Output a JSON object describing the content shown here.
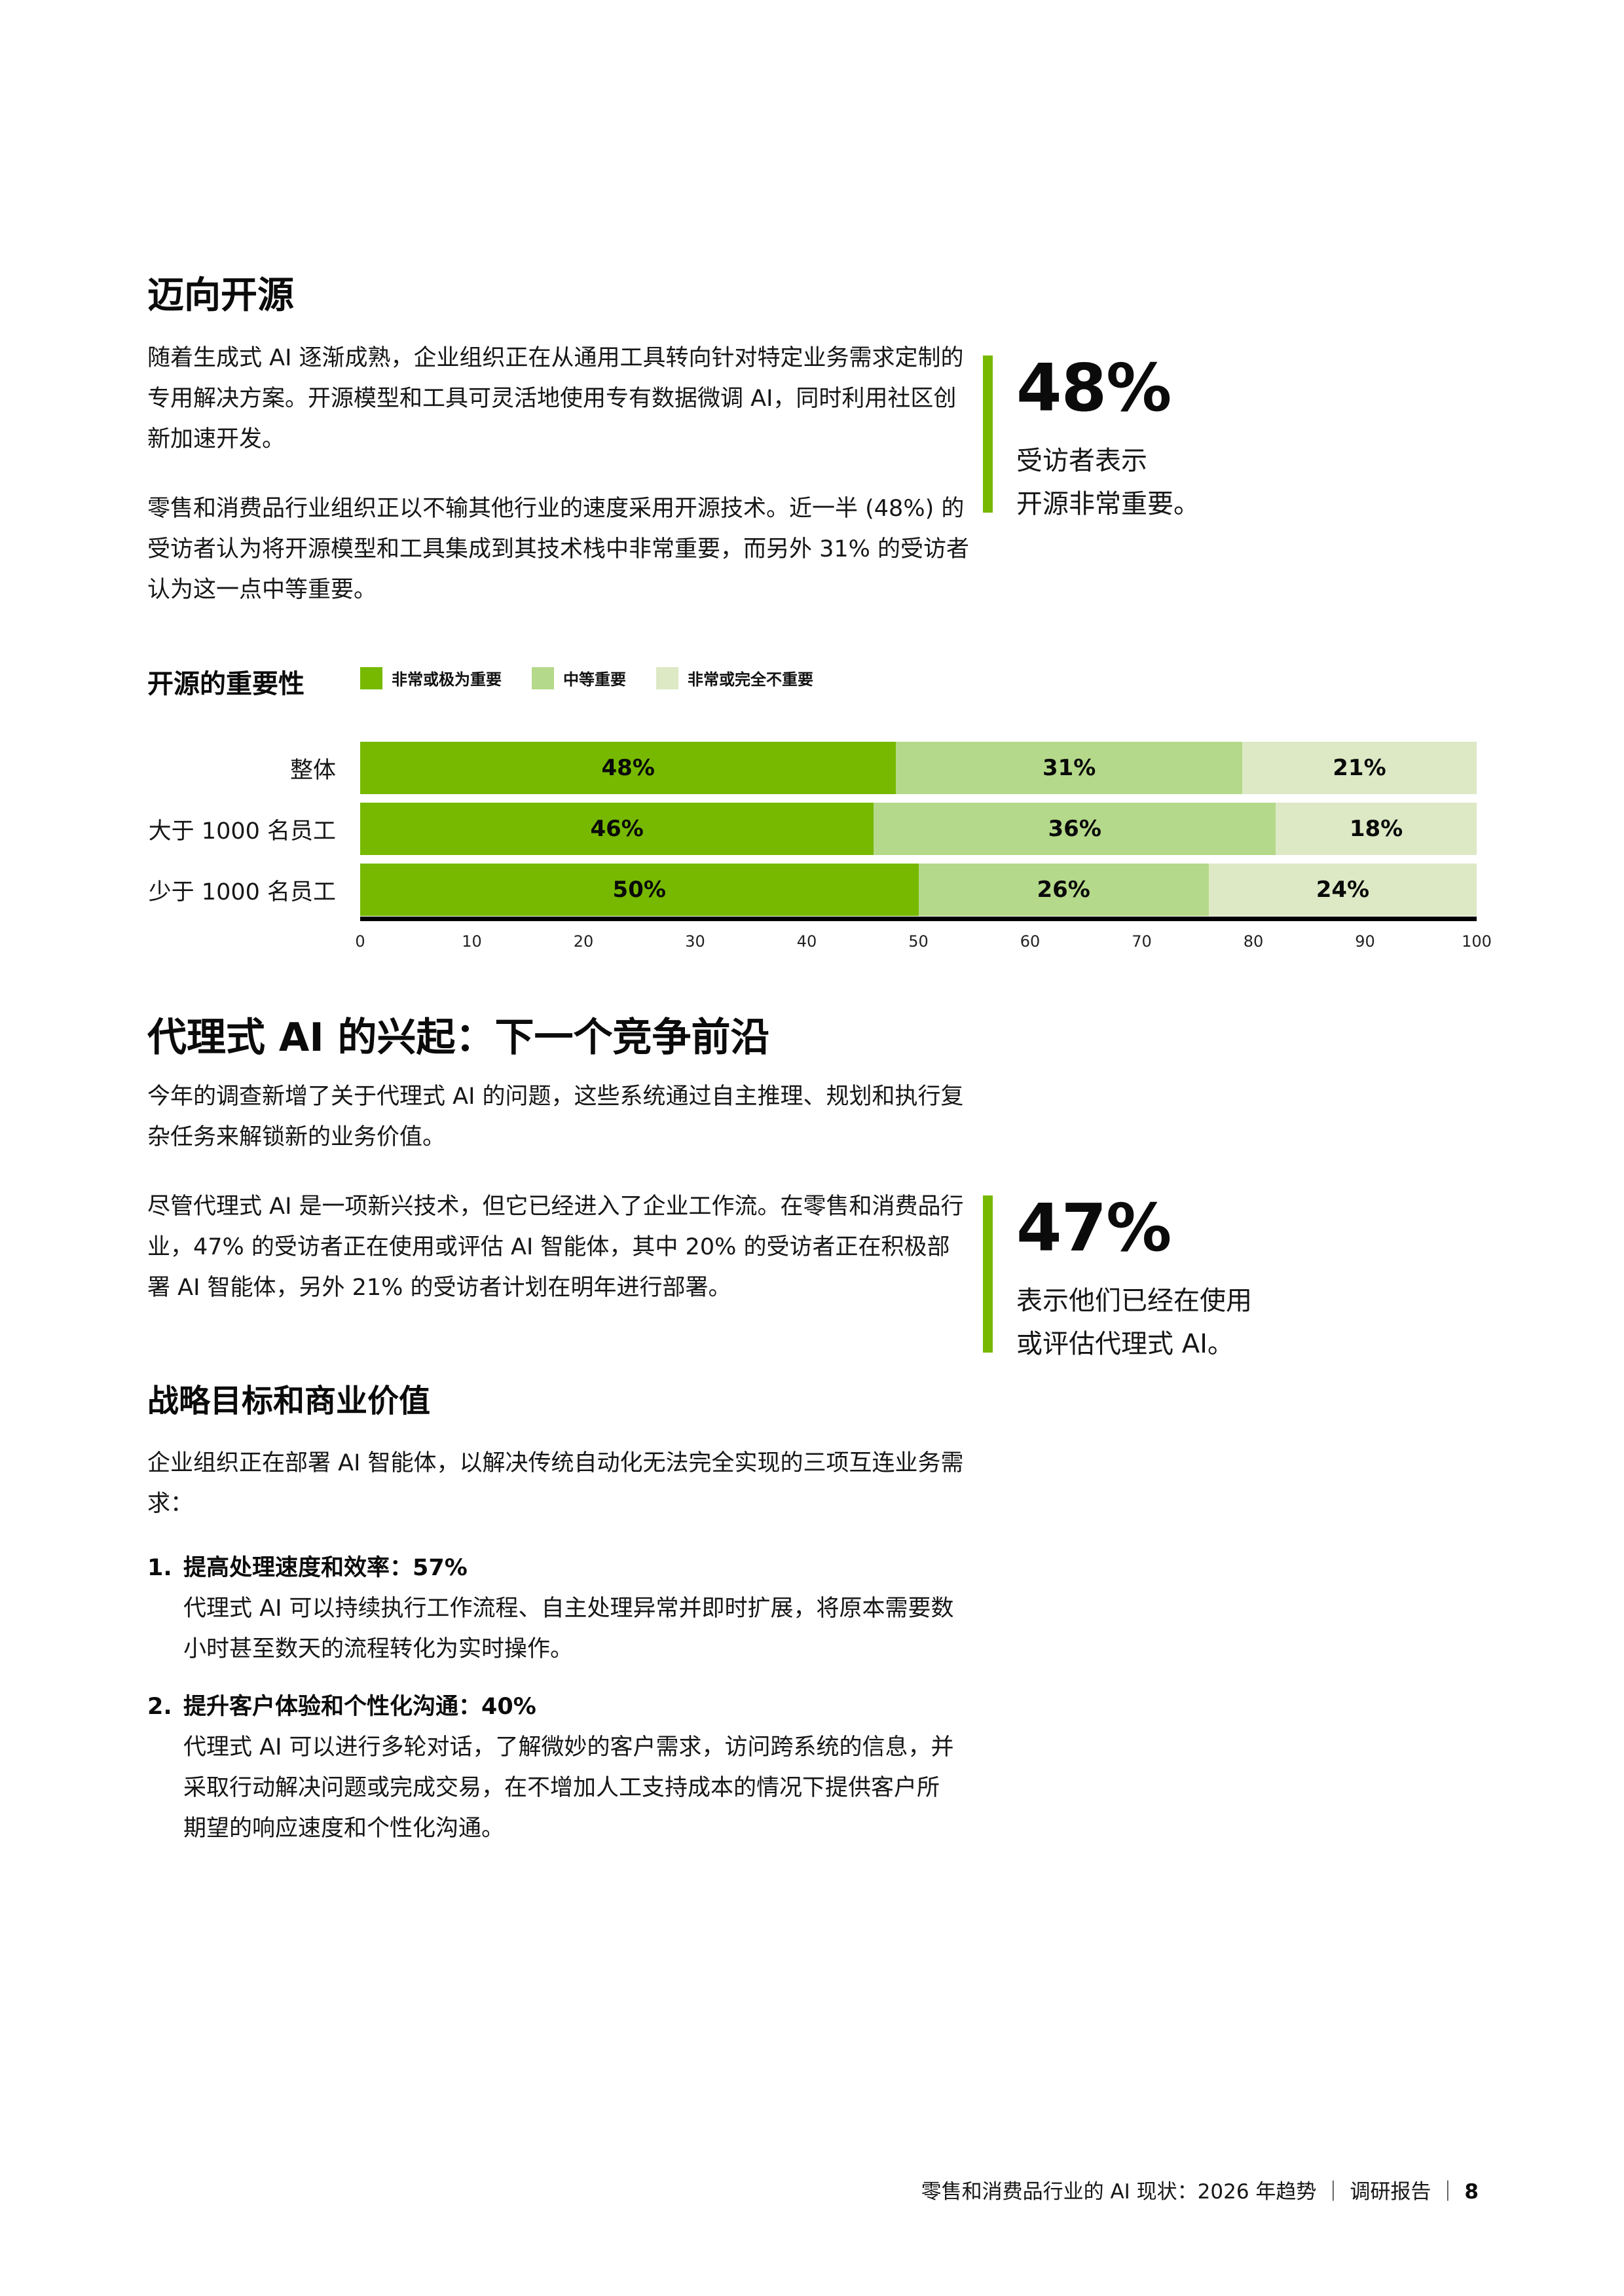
{
  "page": {
    "background": "#ffffff",
    "accent_green": "#76b900",
    "text_color": "#161616"
  },
  "section_open_source": {
    "title": "迈向开源",
    "p1": "随着生成式 AI 逐渐成熟，企业组织正在从通用工具转向针对特定业务需求定制的专用解决方案。开源模型和工具可灵活地使用专有数据微调 AI，同时利用社区创新加速开发。",
    "p2": "零售和消费品行业组织正以不输其他行业的速度采用开源技术。近一半 (48%) 的受访者认为将开源模型和工具集成到其技术栈中非常重要，而另外 31% 的受访者认为这一点中等重要。",
    "callout": {
      "value": "48%",
      "caption_line1": "受访者表示",
      "caption_line2": "开源非常重要。"
    }
  },
  "chart_data": {
    "type": "bar",
    "orientation": "horizontal",
    "stacked": true,
    "title": "开源的重要性",
    "legend_position": "top",
    "grid": false,
    "xlim": [
      0,
      100
    ],
    "x_ticks": [
      "0",
      "10",
      "20",
      "30",
      "40",
      "50",
      "60",
      "70",
      "80",
      "90",
      "100"
    ],
    "categories": [
      "整体",
      "大于 1000 名员工",
      "少于 1000 名员工"
    ],
    "series": [
      {
        "name": "非常或极为重要",
        "color": "#76b900",
        "values": [
          48,
          46,
          50
        ]
      },
      {
        "name": "中等重要",
        "color": "#b5d98a",
        "values": [
          31,
          36,
          26
        ]
      },
      {
        "name": "非常或完全不重要",
        "color": "#dde9c5",
        "values": [
          21,
          18,
          24
        ]
      }
    ],
    "value_labels": [
      [
        "48%",
        "31%",
        "21%"
      ],
      [
        "46%",
        "36%",
        "18%"
      ],
      [
        "50%",
        "26%",
        "24%"
      ]
    ]
  },
  "section_agentic": {
    "title": "代理式 AI 的兴起：下一个竞争前沿",
    "p1": "今年的调查新增了关于代理式 AI 的问题，这些系统通过自主推理、规划和执行复杂任务来解锁新的业务价值。",
    "p2": "尽管代理式 AI 是一项新兴技术，但它已经进入了企业工作流。在零售和消费品行业，47% 的受访者正在使用或评估 AI 智能体，其中 20% 的受访者正在积极部署 AI 智能体，另外 21% 的受访者计划在明年进行部署。",
    "callout": {
      "value": "47%",
      "caption_line1": "表示他们已经在使用",
      "caption_line2": "或评估代理式 AI。"
    }
  },
  "section_strategy": {
    "title": "战略目标和商业价值",
    "intro": "企业组织正在部署 AI 智能体，以解决传统自动化无法完全实现的三项互连业务需求：",
    "items": [
      {
        "number": "1.",
        "title": "提高处理速度和效率：57%",
        "body": "代理式 AI 可以持续执行工作流程、自主处理异常并即时扩展，将原本需要数小时甚至数天的流程转化为实时操作。"
      },
      {
        "number": "2.",
        "title": "提升客户体验和个性化沟通：40%",
        "body": "代理式 AI 可以进行多轮对话，了解微妙的客户需求，访问跨系统的信息，并采取行动解决问题或完成交易，在不增加人工支持成本的情况下提供客户所期望的响应速度和个性化沟通。"
      }
    ]
  },
  "footer": {
    "report_title": "零售和消费品行业的 AI 现状：2026 年趋势",
    "separator": "｜",
    "doc_type": "调研报告",
    "page_number": "8"
  }
}
